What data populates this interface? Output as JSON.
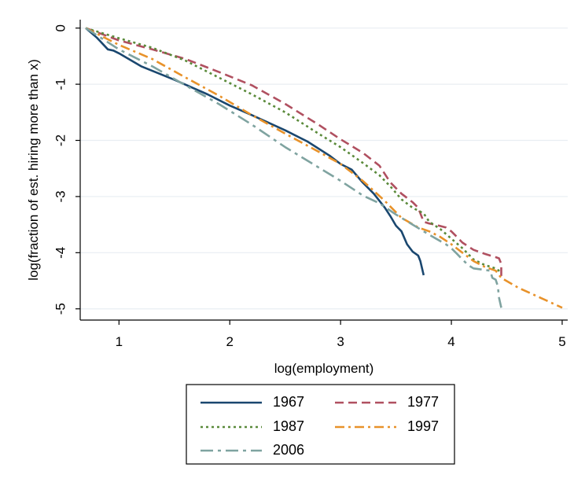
{
  "chart_data": {
    "type": "line",
    "title": "",
    "xlabel": "log(employment)",
    "ylabel": "log(fraction of est. hiring more than x)",
    "xlim": [
      0.65,
      5.05
    ],
    "ylim": [
      -5.2,
      0.15
    ],
    "xticks": [
      1,
      2,
      3,
      4,
      5
    ],
    "yticks": [
      0,
      -1,
      -2,
      -3,
      -4,
      -5
    ],
    "grid": "horizontal",
    "legend_position": "bottom",
    "series": [
      {
        "name": "1967",
        "color": "#1a476f",
        "style": "solid",
        "points": [
          [
            0.7,
            0
          ],
          [
            0.8,
            -0.17
          ],
          [
            0.9,
            -0.38
          ],
          [
            0.95,
            -0.4
          ],
          [
            1.0,
            -0.45
          ],
          [
            1.2,
            -0.68
          ],
          [
            1.5,
            -0.92
          ],
          [
            1.8,
            -1.18
          ],
          [
            2.0,
            -1.38
          ],
          [
            2.2,
            -1.55
          ],
          [
            2.5,
            -1.82
          ],
          [
            2.7,
            -2.02
          ],
          [
            2.9,
            -2.27
          ],
          [
            3.0,
            -2.42
          ],
          [
            3.1,
            -2.52
          ],
          [
            3.2,
            -2.75
          ],
          [
            3.3,
            -2.95
          ],
          [
            3.4,
            -3.2
          ],
          [
            3.45,
            -3.35
          ],
          [
            3.5,
            -3.52
          ],
          [
            3.55,
            -3.62
          ],
          [
            3.6,
            -3.85
          ],
          [
            3.65,
            -3.98
          ],
          [
            3.7,
            -4.05
          ],
          [
            3.72,
            -4.15
          ],
          [
            3.75,
            -4.4
          ]
        ]
      },
      {
        "name": "1977",
        "color": "#b05060",
        "style": "dashed",
        "points": [
          [
            0.7,
            0
          ],
          [
            1.0,
            -0.22
          ],
          [
            1.3,
            -0.38
          ],
          [
            1.6,
            -0.55
          ],
          [
            1.9,
            -0.78
          ],
          [
            2.2,
            -1.02
          ],
          [
            2.5,
            -1.35
          ],
          [
            2.8,
            -1.72
          ],
          [
            3.0,
            -1.98
          ],
          [
            3.2,
            -2.22
          ],
          [
            3.35,
            -2.45
          ],
          [
            3.45,
            -2.75
          ],
          [
            3.55,
            -2.95
          ],
          [
            3.65,
            -3.1
          ],
          [
            3.7,
            -3.2
          ],
          [
            3.75,
            -3.45
          ],
          [
            3.8,
            -3.48
          ],
          [
            3.85,
            -3.5
          ],
          [
            3.95,
            -3.55
          ],
          [
            4.0,
            -3.62
          ],
          [
            4.05,
            -3.72
          ],
          [
            4.1,
            -3.82
          ],
          [
            4.2,
            -3.95
          ],
          [
            4.3,
            -4.02
          ],
          [
            4.4,
            -4.08
          ],
          [
            4.43,
            -4.1
          ],
          [
            4.45,
            -4.2
          ],
          [
            4.45,
            -4.45
          ]
        ]
      },
      {
        "name": "1987",
        "color": "#5a8a3a",
        "style": "dotted",
        "points": [
          [
            0.7,
            0
          ],
          [
            1.0,
            -0.18
          ],
          [
            1.3,
            -0.35
          ],
          [
            1.6,
            -0.58
          ],
          [
            1.9,
            -0.88
          ],
          [
            2.2,
            -1.18
          ],
          [
            2.5,
            -1.5
          ],
          [
            2.8,
            -1.88
          ],
          [
            3.0,
            -2.12
          ],
          [
            3.2,
            -2.4
          ],
          [
            3.35,
            -2.62
          ],
          [
            3.45,
            -2.82
          ],
          [
            3.55,
            -3.05
          ],
          [
            3.65,
            -3.2
          ],
          [
            3.75,
            -3.3
          ],
          [
            3.8,
            -3.45
          ],
          [
            3.9,
            -3.58
          ],
          [
            4.0,
            -3.75
          ],
          [
            4.1,
            -3.92
          ],
          [
            4.2,
            -4.12
          ],
          [
            4.3,
            -4.22
          ],
          [
            4.4,
            -4.28
          ],
          [
            4.45,
            -4.35
          ]
        ]
      },
      {
        "name": "1997",
        "color": "#e8922a",
        "style": "dashdot",
        "points": [
          [
            0.7,
            0
          ],
          [
            1.0,
            -0.3
          ],
          [
            1.3,
            -0.55
          ],
          [
            1.6,
            -0.88
          ],
          [
            1.9,
            -1.2
          ],
          [
            2.2,
            -1.55
          ],
          [
            2.5,
            -1.88
          ],
          [
            2.8,
            -2.2
          ],
          [
            3.0,
            -2.42
          ],
          [
            3.2,
            -2.72
          ],
          [
            3.4,
            -3.08
          ],
          [
            3.55,
            -3.38
          ],
          [
            3.7,
            -3.55
          ],
          [
            3.8,
            -3.62
          ],
          [
            3.9,
            -3.72
          ],
          [
            4.0,
            -3.85
          ],
          [
            4.1,
            -4.0
          ],
          [
            4.2,
            -4.15
          ],
          [
            4.3,
            -4.25
          ],
          [
            4.4,
            -4.32
          ],
          [
            4.45,
            -4.45
          ],
          [
            4.6,
            -4.62
          ],
          [
            4.8,
            -4.8
          ],
          [
            5.0,
            -4.98
          ]
        ]
      },
      {
        "name": "2006",
        "color": "#7fa3a0",
        "style": "longdashdot",
        "points": [
          [
            0.7,
            0
          ],
          [
            1.0,
            -0.38
          ],
          [
            1.3,
            -0.68
          ],
          [
            1.6,
            -1.02
          ],
          [
            1.9,
            -1.35
          ],
          [
            2.2,
            -1.72
          ],
          [
            2.5,
            -2.12
          ],
          [
            2.8,
            -2.48
          ],
          [
            3.0,
            -2.72
          ],
          [
            3.2,
            -2.98
          ],
          [
            3.35,
            -3.12
          ],
          [
            3.5,
            -3.32
          ],
          [
            3.65,
            -3.5
          ],
          [
            3.8,
            -3.68
          ],
          [
            3.95,
            -3.85
          ],
          [
            4.0,
            -3.92
          ],
          [
            4.05,
            -4.02
          ],
          [
            4.1,
            -4.12
          ],
          [
            4.15,
            -4.22
          ],
          [
            4.2,
            -4.28
          ],
          [
            4.35,
            -4.32
          ],
          [
            4.37,
            -4.45
          ],
          [
            4.4,
            -4.48
          ],
          [
            4.42,
            -4.6
          ],
          [
            4.43,
            -4.8
          ],
          [
            4.45,
            -4.98
          ]
        ]
      }
    ]
  }
}
